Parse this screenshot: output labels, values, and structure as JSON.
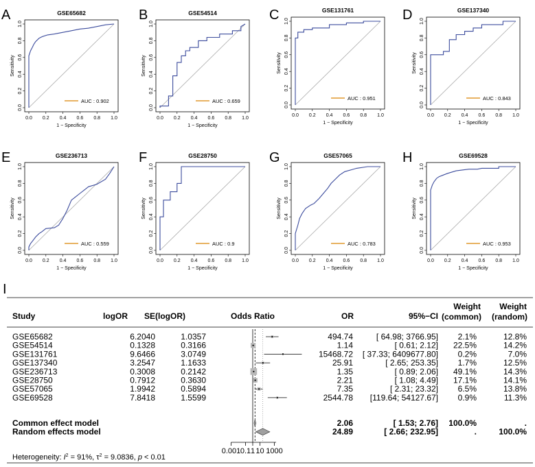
{
  "chart_data": [
    {
      "type": "line",
      "panel": "A",
      "title": "GSE65682",
      "xlabel": "1 − Specificity",
      "ylabel": "Sensitivity",
      "xlim": [
        0,
        1
      ],
      "ylim": [
        0,
        1
      ],
      "ticks": [
        "0.0",
        "0.2",
        "0.4",
        "0.6",
        "0.8",
        "1.0"
      ],
      "auc_label": "AUC : 0.902",
      "auc": 0.902,
      "roc": [
        [
          0,
          0
        ],
        [
          0,
          0.62
        ],
        [
          0.02,
          0.68
        ],
        [
          0.04,
          0.72
        ],
        [
          0.06,
          0.76
        ],
        [
          0.08,
          0.79
        ],
        [
          0.12,
          0.83
        ],
        [
          0.16,
          0.85
        ],
        [
          0.22,
          0.87
        ],
        [
          0.3,
          0.88
        ],
        [
          0.4,
          0.9
        ],
        [
          0.5,
          0.92
        ],
        [
          0.6,
          0.94
        ],
        [
          0.7,
          0.95
        ],
        [
          0.8,
          0.97
        ],
        [
          0.9,
          0.99
        ],
        [
          1,
          1
        ]
      ]
    },
    {
      "type": "line",
      "panel": "B",
      "title": "GSE54514",
      "xlabel": "1 − Specificity",
      "ylabel": "Sensitivity",
      "xlim": [
        0,
        1
      ],
      "ylim": [
        0,
        1
      ],
      "ticks": [
        "0.0",
        "0.2",
        "0.4",
        "0.6",
        "0.8",
        "1.0"
      ],
      "auc_label": "AUC : 0.659",
      "auc": 0.659,
      "roc": [
        [
          0,
          0
        ],
        [
          0,
          0.02
        ],
        [
          0.1,
          0.02
        ],
        [
          0.1,
          0.14
        ],
        [
          0.15,
          0.14
        ],
        [
          0.15,
          0.38
        ],
        [
          0.2,
          0.38
        ],
        [
          0.2,
          0.54
        ],
        [
          0.25,
          0.54
        ],
        [
          0.25,
          0.62
        ],
        [
          0.3,
          0.62
        ],
        [
          0.3,
          0.68
        ],
        [
          0.35,
          0.68
        ],
        [
          0.35,
          0.72
        ],
        [
          0.45,
          0.72
        ],
        [
          0.45,
          0.8
        ],
        [
          0.55,
          0.8
        ],
        [
          0.55,
          0.84
        ],
        [
          0.7,
          0.84
        ],
        [
          0.7,
          0.88
        ],
        [
          0.85,
          0.88
        ],
        [
          0.85,
          0.92
        ],
        [
          0.95,
          0.92
        ],
        [
          0.95,
          0.97
        ],
        [
          1,
          1
        ]
      ]
    },
    {
      "type": "line",
      "panel": "C",
      "title": "GSE131761",
      "xlabel": "1 − Specificity",
      "ylabel": "Sensitivity",
      "xlim": [
        0,
        1
      ],
      "ylim": [
        0,
        1
      ],
      "ticks": [
        "0.0",
        "0.2",
        "0.4",
        "0.6",
        "0.8",
        "1.0"
      ],
      "auc_label": "AUC : 0.951",
      "auc": 0.951,
      "roc": [
        [
          0,
          0
        ],
        [
          0,
          0.8
        ],
        [
          0.03,
          0.8
        ],
        [
          0.03,
          0.87
        ],
        [
          0.1,
          0.87
        ],
        [
          0.1,
          0.9
        ],
        [
          0.2,
          0.9
        ],
        [
          0.2,
          0.92
        ],
        [
          0.4,
          0.92
        ],
        [
          0.4,
          0.96
        ],
        [
          0.6,
          0.96
        ],
        [
          0.6,
          0.98
        ],
        [
          0.8,
          0.98
        ],
        [
          0.8,
          1
        ],
        [
          1,
          1
        ]
      ]
    },
    {
      "type": "line",
      "panel": "D",
      "title": "GSE137340",
      "xlabel": "1 − Specificity",
      "ylabel": "Sensitivity",
      "xlim": [
        0,
        1
      ],
      "ylim": [
        0,
        1
      ],
      "ticks": [
        "0.0",
        "0.2",
        "0.4",
        "0.6",
        "0.8",
        "1.0"
      ],
      "auc_label": "AUC : 0.843",
      "auc": 0.843,
      "roc": [
        [
          0,
          0
        ],
        [
          0,
          0.6
        ],
        [
          0.15,
          0.6
        ],
        [
          0.15,
          0.64
        ],
        [
          0.22,
          0.64
        ],
        [
          0.22,
          0.78
        ],
        [
          0.3,
          0.78
        ],
        [
          0.3,
          0.84
        ],
        [
          0.4,
          0.84
        ],
        [
          0.4,
          0.88
        ],
        [
          0.5,
          0.88
        ],
        [
          0.5,
          0.92
        ],
        [
          0.6,
          0.92
        ],
        [
          0.6,
          0.96
        ],
        [
          0.85,
          0.96
        ],
        [
          0.85,
          1
        ],
        [
          1,
          1
        ]
      ]
    },
    {
      "type": "line",
      "panel": "E",
      "title": "GSE236713",
      "xlabel": "1 − Specificity",
      "ylabel": "Sensitivity",
      "xlim": [
        0,
        1
      ],
      "ylim": [
        0,
        1
      ],
      "ticks": [
        "0.0",
        "0.2",
        "0.4",
        "0.6",
        "0.8",
        "1.0"
      ],
      "auc_label": "AUC : 0.559",
      "auc": 0.559,
      "roc": [
        [
          0,
          0
        ],
        [
          0,
          0.04
        ],
        [
          0.02,
          0.08
        ],
        [
          0.05,
          0.12
        ],
        [
          0.08,
          0.16
        ],
        [
          0.12,
          0.2
        ],
        [
          0.15,
          0.22
        ],
        [
          0.2,
          0.26
        ],
        [
          0.3,
          0.27
        ],
        [
          0.35,
          0.3
        ],
        [
          0.4,
          0.38
        ],
        [
          0.45,
          0.48
        ],
        [
          0.5,
          0.6
        ],
        [
          0.55,
          0.64
        ],
        [
          0.6,
          0.68
        ],
        [
          0.65,
          0.72
        ],
        [
          0.7,
          0.76
        ],
        [
          0.8,
          0.79
        ],
        [
          0.9,
          0.85
        ],
        [
          0.95,
          0.92
        ],
        [
          1,
          1
        ]
      ]
    },
    {
      "type": "line",
      "panel": "F",
      "title": "GSE28750",
      "xlabel": "1 − Specificity",
      "ylabel": "Sensitivity",
      "xlim": [
        0,
        1
      ],
      "ylim": [
        0,
        1
      ],
      "ticks": [
        "0.0",
        "0.2",
        "0.4",
        "0.6",
        "0.8",
        "1.0"
      ],
      "auc_label": "AUC : 0.9",
      "auc": 0.9,
      "roc": [
        [
          0,
          0
        ],
        [
          0,
          0.4
        ],
        [
          0.04,
          0.4
        ],
        [
          0.04,
          0.6
        ],
        [
          0.12,
          0.6
        ],
        [
          0.12,
          0.7
        ],
        [
          0.2,
          0.7
        ],
        [
          0.2,
          0.8
        ],
        [
          0.25,
          0.8
        ],
        [
          0.25,
          1
        ],
        [
          1,
          1
        ]
      ]
    },
    {
      "type": "line",
      "panel": "G",
      "title": "GSE57065",
      "xlabel": "1 − Specificity",
      "ylabel": "Sensitivity",
      "xlim": [
        0,
        1
      ],
      "ylim": [
        0,
        1
      ],
      "ticks": [
        "0.0",
        "0.2",
        "0.4",
        "0.6",
        "0.8",
        "1.0"
      ],
      "auc_label": "AUC : 0.783",
      "auc": 0.783,
      "roc": [
        [
          0,
          0
        ],
        [
          0,
          0.2
        ],
        [
          0.03,
          0.3
        ],
        [
          0.05,
          0.38
        ],
        [
          0.08,
          0.44
        ],
        [
          0.12,
          0.5
        ],
        [
          0.18,
          0.54
        ],
        [
          0.22,
          0.56
        ],
        [
          0.28,
          0.62
        ],
        [
          0.33,
          0.68
        ],
        [
          0.38,
          0.74
        ],
        [
          0.42,
          0.8
        ],
        [
          0.48,
          0.86
        ],
        [
          0.52,
          0.9
        ],
        [
          0.58,
          0.94
        ],
        [
          0.65,
          0.96
        ],
        [
          0.72,
          0.98
        ],
        [
          0.85,
          1
        ],
        [
          1,
          1
        ]
      ]
    },
    {
      "type": "line",
      "panel": "H",
      "title": "GSE69528",
      "xlabel": "1 − Specificity",
      "ylabel": "Sensitivity",
      "xlim": [
        0,
        1
      ],
      "ylim": [
        0,
        1
      ],
      "ticks": [
        "0.0",
        "0.2",
        "0.4",
        "0.6",
        "0.8",
        "1.0"
      ],
      "auc_label": "AUC : 0.953",
      "auc": 0.953,
      "roc": [
        [
          0,
          0
        ],
        [
          0,
          0.72
        ],
        [
          0.02,
          0.78
        ],
        [
          0.04,
          0.82
        ],
        [
          0.07,
          0.86
        ],
        [
          0.1,
          0.88
        ],
        [
          0.15,
          0.9
        ],
        [
          0.2,
          0.92
        ],
        [
          0.3,
          0.95
        ],
        [
          0.45,
          0.97
        ],
        [
          0.55,
          0.97
        ],
        [
          0.6,
          0.98
        ],
        [
          0.8,
          0.98
        ],
        [
          0.8,
          1
        ],
        [
          1,
          1
        ]
      ]
    },
    {
      "type": "table",
      "panel": "I",
      "subtype": "forest",
      "columns": {
        "study": "Study",
        "logor": "logOR",
        "se": "SE(logOR)",
        "odds_ratio": "Odds Ratio",
        "or": "OR",
        "ci": "95%−CI",
        "weight": "Weight",
        "common": "(common)",
        "random": "(random)"
      },
      "rows": [
        {
          "study": "GSE65682",
          "logor": "6.2040",
          "se": "1.0357",
          "or": "494.74",
          "ci": "[ 64.98;   3766.95]",
          "w_common": "2.1%",
          "w_random": "12.8%",
          "or_value": 494.74,
          "lower": 64.98,
          "upper": 3766.95,
          "weight": 2.1
        },
        {
          "study": "GSE54514",
          "logor": "0.1328",
          "se": "0.3166",
          "or": "1.14",
          "ci": "[   0.61;      2.12]",
          "w_common": "22.5%",
          "w_random": "14.2%",
          "or_value": 1.14,
          "lower": 0.61,
          "upper": 2.12,
          "weight": 22.5
        },
        {
          "study": "GSE131761",
          "logor": "9.6466",
          "se": "3.0749",
          "or": "15468.72",
          "ci": "[ 37.33; 6409677.80]",
          "w_common": "0.2%",
          "w_random": "7.0%",
          "or_value": 15468.72,
          "lower": 37.33,
          "upper": 6409677.8,
          "weight": 0.2
        },
        {
          "study": "GSE137340",
          "logor": "3.2547",
          "se": "1.1633",
          "or": "25.91",
          "ci": "[   2.65;    253.35]",
          "w_common": "1.7%",
          "w_random": "12.5%",
          "or_value": 25.91,
          "lower": 2.65,
          "upper": 253.35,
          "weight": 1.7
        },
        {
          "study": "GSE236713",
          "logor": "0.3008",
          "se": "0.2142",
          "or": "1.35",
          "ci": "[   0.89;      2.06]",
          "w_common": "49.1%",
          "w_random": "14.3%",
          "or_value": 1.35,
          "lower": 0.89,
          "upper": 2.06,
          "weight": 49.1
        },
        {
          "study": "GSE28750",
          "logor": "0.7912",
          "se": "0.3630",
          "or": "2.21",
          "ci": "[   1.08;      4.49]",
          "w_common": "17.1%",
          "w_random": "14.1%",
          "or_value": 2.21,
          "lower": 1.08,
          "upper": 4.49,
          "weight": 17.1
        },
        {
          "study": "GSE57065",
          "logor": "1.9942",
          "se": "0.5894",
          "or": "7.35",
          "ci": "[   2.31;     23.32]",
          "w_common": "6.5%",
          "w_random": "13.8%",
          "or_value": 7.35,
          "lower": 2.31,
          "upper": 23.32,
          "weight": 6.5
        },
        {
          "study": "GSE69528",
          "logor": "7.8418",
          "se": "1.5599",
          "or": "2544.78",
          "ci": "[119.64;  54127.67]",
          "w_common": "0.9%",
          "w_random": "11.3%",
          "or_value": 2544.78,
          "lower": 119.64,
          "upper": 54127.67,
          "weight": 0.9
        }
      ],
      "summary": [
        {
          "label": "Common effect model",
          "or": "2.06",
          "ci": "[   1.53;      2.76]",
          "w_common": "100.0%",
          "w_random": ".",
          "or_value": 2.06,
          "lower": 1.53,
          "upper": 2.76
        },
        {
          "label": "Random effects model",
          "or": "24.89",
          "ci": "[   2.66;    232.95]",
          "w_common": ".",
          "w_random": "100.0%",
          "or_value": 24.89,
          "lower": 2.66,
          "upper": 232.95
        }
      ],
      "heterogeneity": {
        "prefix": "Heterogeneity: ",
        "i2_symbol": "I",
        "i2_sup": "2",
        "i2_value": " = 91%,  ",
        "tau_symbol": "τ",
        "tau_sup": "2",
        "tau_value": " = 9.0836, ",
        "p_symbol": "p",
        "p_value": " < 0.01"
      },
      "axis": {
        "ticks": [
          "0.001",
          "0.1",
          "1",
          "10",
          "1000"
        ],
        "tick_values": [
          0.001,
          0.1,
          1,
          10,
          1000
        ],
        "xscale": "log",
        "xlim": [
          0.001,
          1000
        ]
      }
    }
  ],
  "panel_letters": [
    "A",
    "B",
    "C",
    "D",
    "E",
    "F",
    "G",
    "H",
    "I"
  ],
  "colors": {
    "roc_line": "#3a4a9c",
    "legend_line": "#e0992d",
    "diagonal": "#a9a9a9",
    "box": "#b8b8b8",
    "diamond": "#a0a0a0"
  }
}
